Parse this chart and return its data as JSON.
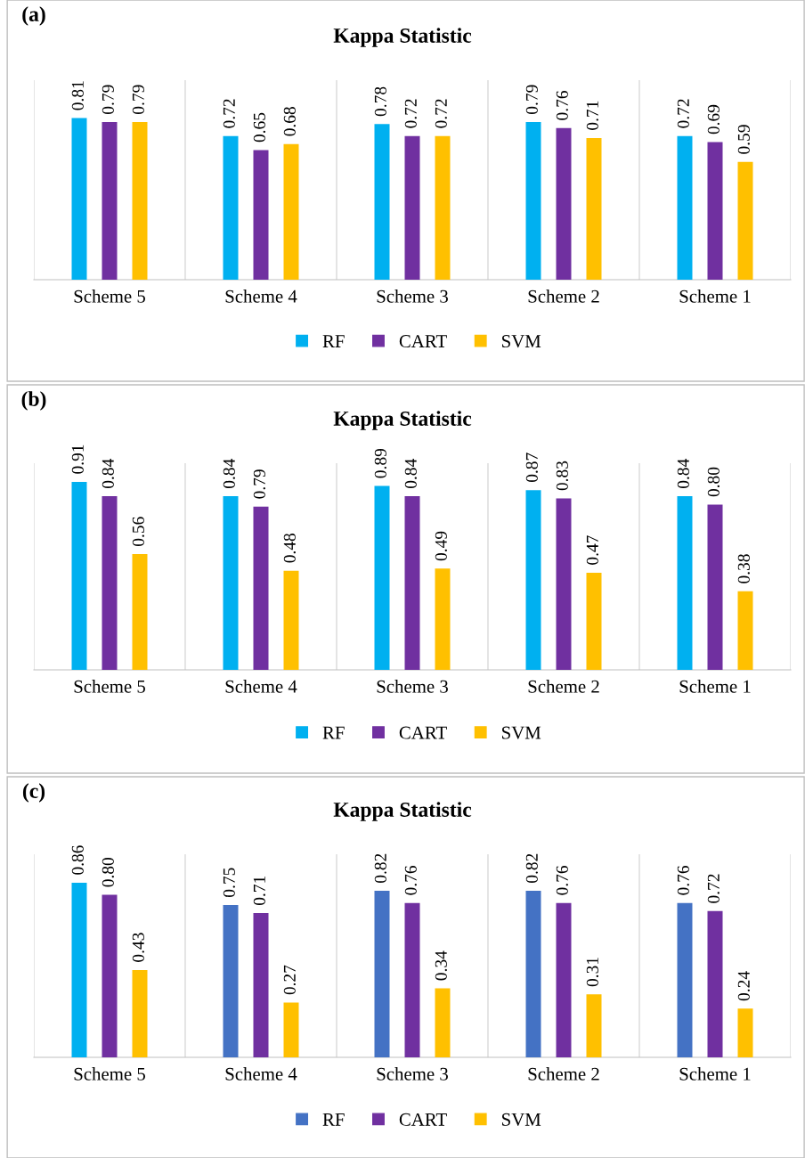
{
  "chart_data": [
    {
      "type": "bar",
      "title": "Kappa Statistic",
      "annotations": [
        "(a)"
      ],
      "categories": [
        "Scheme 5",
        "Scheme 4",
        "Scheme 3",
        "Scheme 2",
        "Scheme 1"
      ],
      "ylim": [
        0,
        1
      ],
      "grid": "x",
      "legend": "bottom",
      "tick_labels": "x",
      "series": [
        {
          "name": "RF",
          "color": "#00b0f0",
          "values": [
            0.81,
            0.72,
            0.78,
            0.79,
            0.72
          ],
          "value_labels": [
            "0.81",
            "0.72",
            "0.78",
            "0.79",
            "0.72"
          ]
        },
        {
          "name": "CART",
          "color": "#7030a0",
          "values": [
            0.79,
            0.65,
            0.72,
            0.76,
            0.69
          ],
          "value_labels": [
            "0.79",
            "0.65",
            "0.72",
            "0.76",
            "0.69"
          ]
        },
        {
          "name": "SVM",
          "color": "#ffc000",
          "values": [
            0.79,
            0.68,
            0.72,
            0.71,
            0.59
          ],
          "value_labels": [
            "0.79",
            "0.68",
            "0.72",
            "0.71",
            "0.59"
          ]
        }
      ]
    },
    {
      "type": "bar",
      "title": "Kappa Statistic",
      "annotations": [
        "(b)"
      ],
      "categories": [
        "Scheme 5",
        "Scheme 4",
        "Scheme 3",
        "Scheme 2",
        "Scheme 1"
      ],
      "ylim": [
        0,
        1
      ],
      "grid": "x",
      "legend": "bottom",
      "tick_labels": "x",
      "series": [
        {
          "name": "RF",
          "color": "#00b0f0",
          "values": [
            0.91,
            0.84,
            0.89,
            0.87,
            0.84
          ],
          "value_labels": [
            "0.91",
            "0.84",
            "0.89",
            "0.87",
            "0.84"
          ]
        },
        {
          "name": "CART",
          "color": "#7030a0",
          "values": [
            0.84,
            0.79,
            0.84,
            0.83,
            0.8
          ],
          "value_labels": [
            "0.84",
            "0.79",
            "0.84",
            "0.83",
            "0.80"
          ]
        },
        {
          "name": "SVM",
          "color": "#ffc000",
          "values": [
            0.56,
            0.48,
            0.49,
            0.47,
            0.38
          ],
          "value_labels": [
            "0.56",
            "0.48",
            "0.49",
            "0.47",
            "0.38"
          ]
        }
      ]
    },
    {
      "type": "bar",
      "title": "Kappa Statistic",
      "annotations": [
        "(c)"
      ],
      "categories": [
        "Scheme 5",
        "Scheme 4",
        "Scheme 3",
        "Scheme 2",
        "Scheme 1"
      ],
      "ylim": [
        0,
        1
      ],
      "grid": "x",
      "legend": "bottom",
      "tick_labels": "x",
      "series": [
        {
          "name": "RF",
          "color": "#4472c4",
          "colors": [
            "#00b0f0",
            "#4472c4",
            "#4472c4",
            "#4472c4",
            "#4472c4"
          ],
          "values": [
            0.86,
            0.75,
            0.82,
            0.82,
            0.76
          ],
          "value_labels": [
            "0.86",
            "0.75",
            "0.82",
            "0.82",
            "0.76"
          ]
        },
        {
          "name": "CART",
          "color": "#7030a0",
          "values": [
            0.8,
            0.71,
            0.76,
            0.76,
            0.72
          ],
          "value_labels": [
            "0.80",
            "0.71",
            "0.76",
            "0.76",
            "0.72"
          ]
        },
        {
          "name": "SVM",
          "color": "#ffc000",
          "values": [
            0.43,
            0.27,
            0.34,
            0.31,
            0.24
          ],
          "value_labels": [
            "0.43",
            "0.27",
            "0.34",
            "0.31",
            "0.24"
          ]
        }
      ]
    }
  ]
}
